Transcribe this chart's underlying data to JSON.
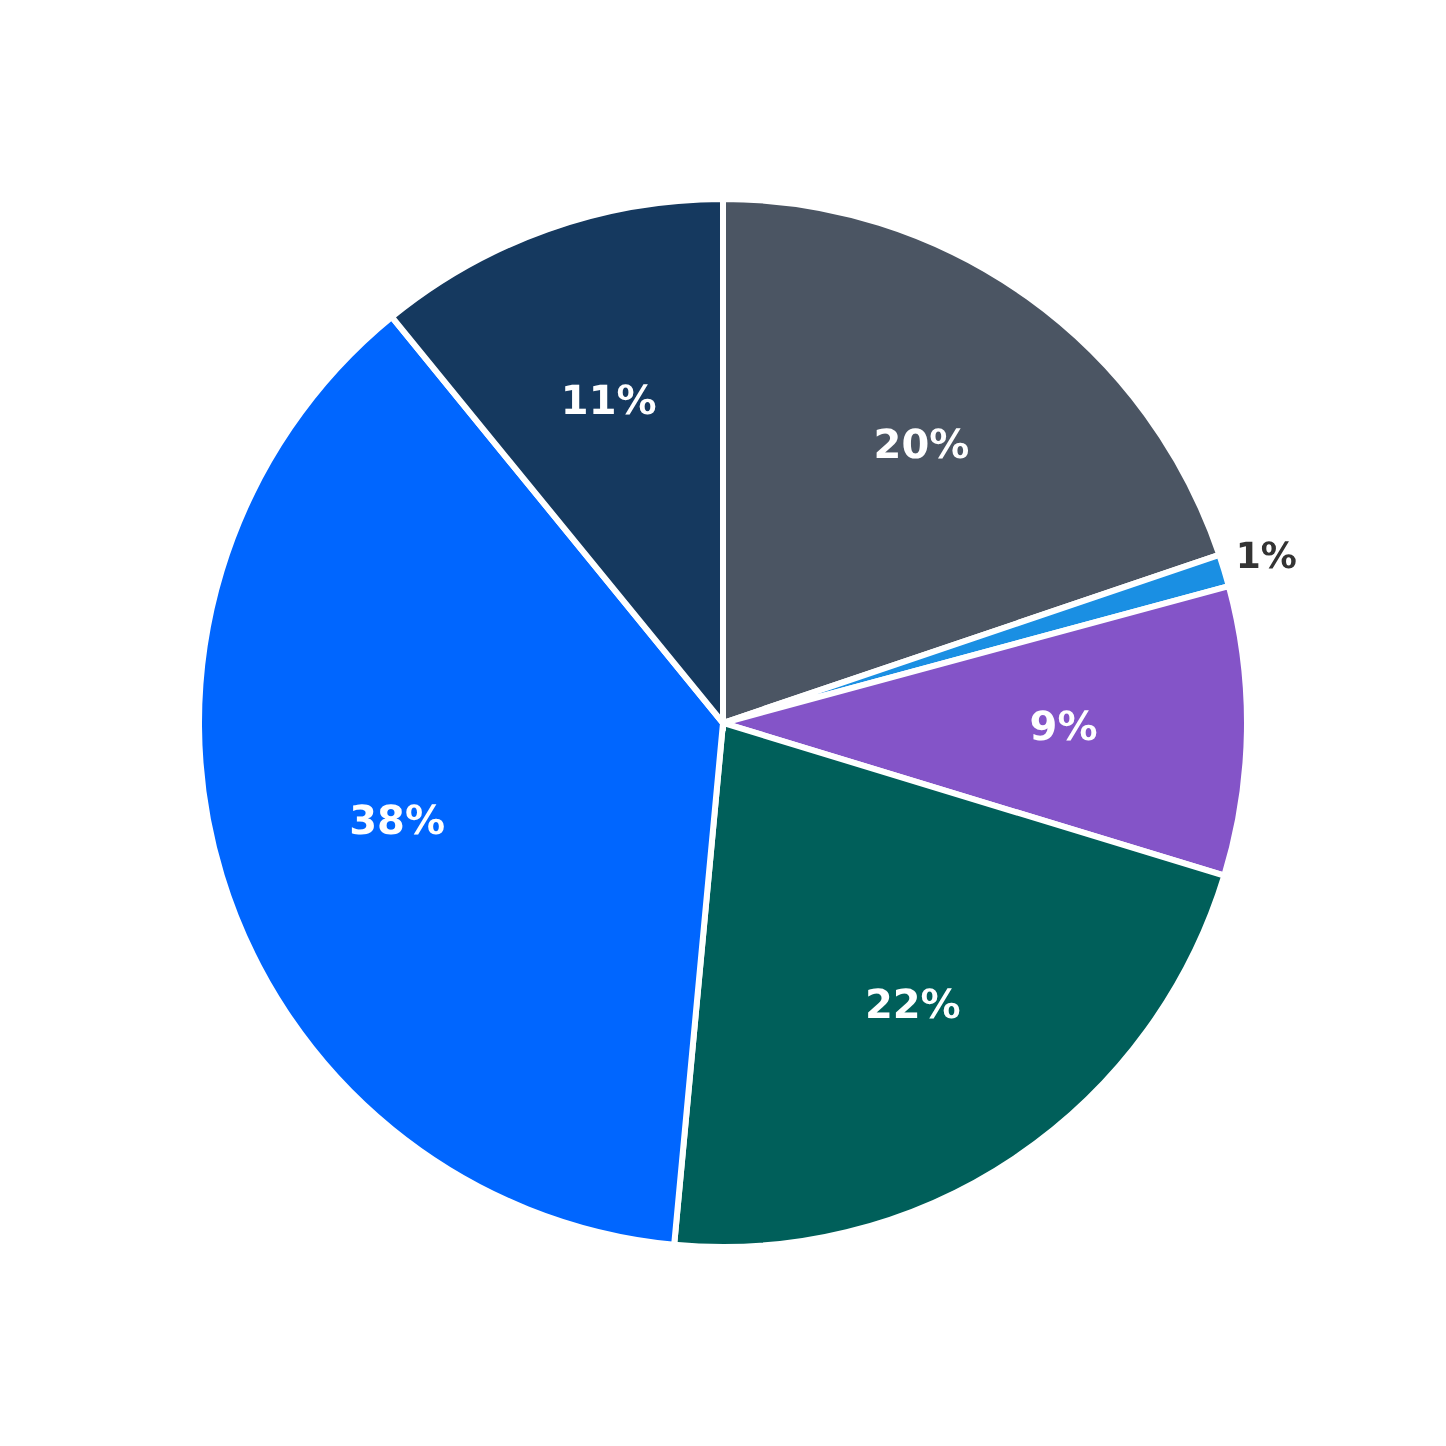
{
  "chart_data": {
    "type": "pie",
    "categories": [
      null,
      null,
      null,
      null,
      null,
      null
    ],
    "values": [
      20,
      1,
      9,
      22,
      38,
      11
    ],
    "value_labels": [
      "20%",
      "1%",
      "9%",
      "22%",
      "38%",
      "11%"
    ],
    "colors": [
      "#4b5563",
      "#1a8fe3",
      "#8454c8",
      "#005f5a",
      "#0066ff",
      "#15395f"
    ],
    "legend": false
  }
}
